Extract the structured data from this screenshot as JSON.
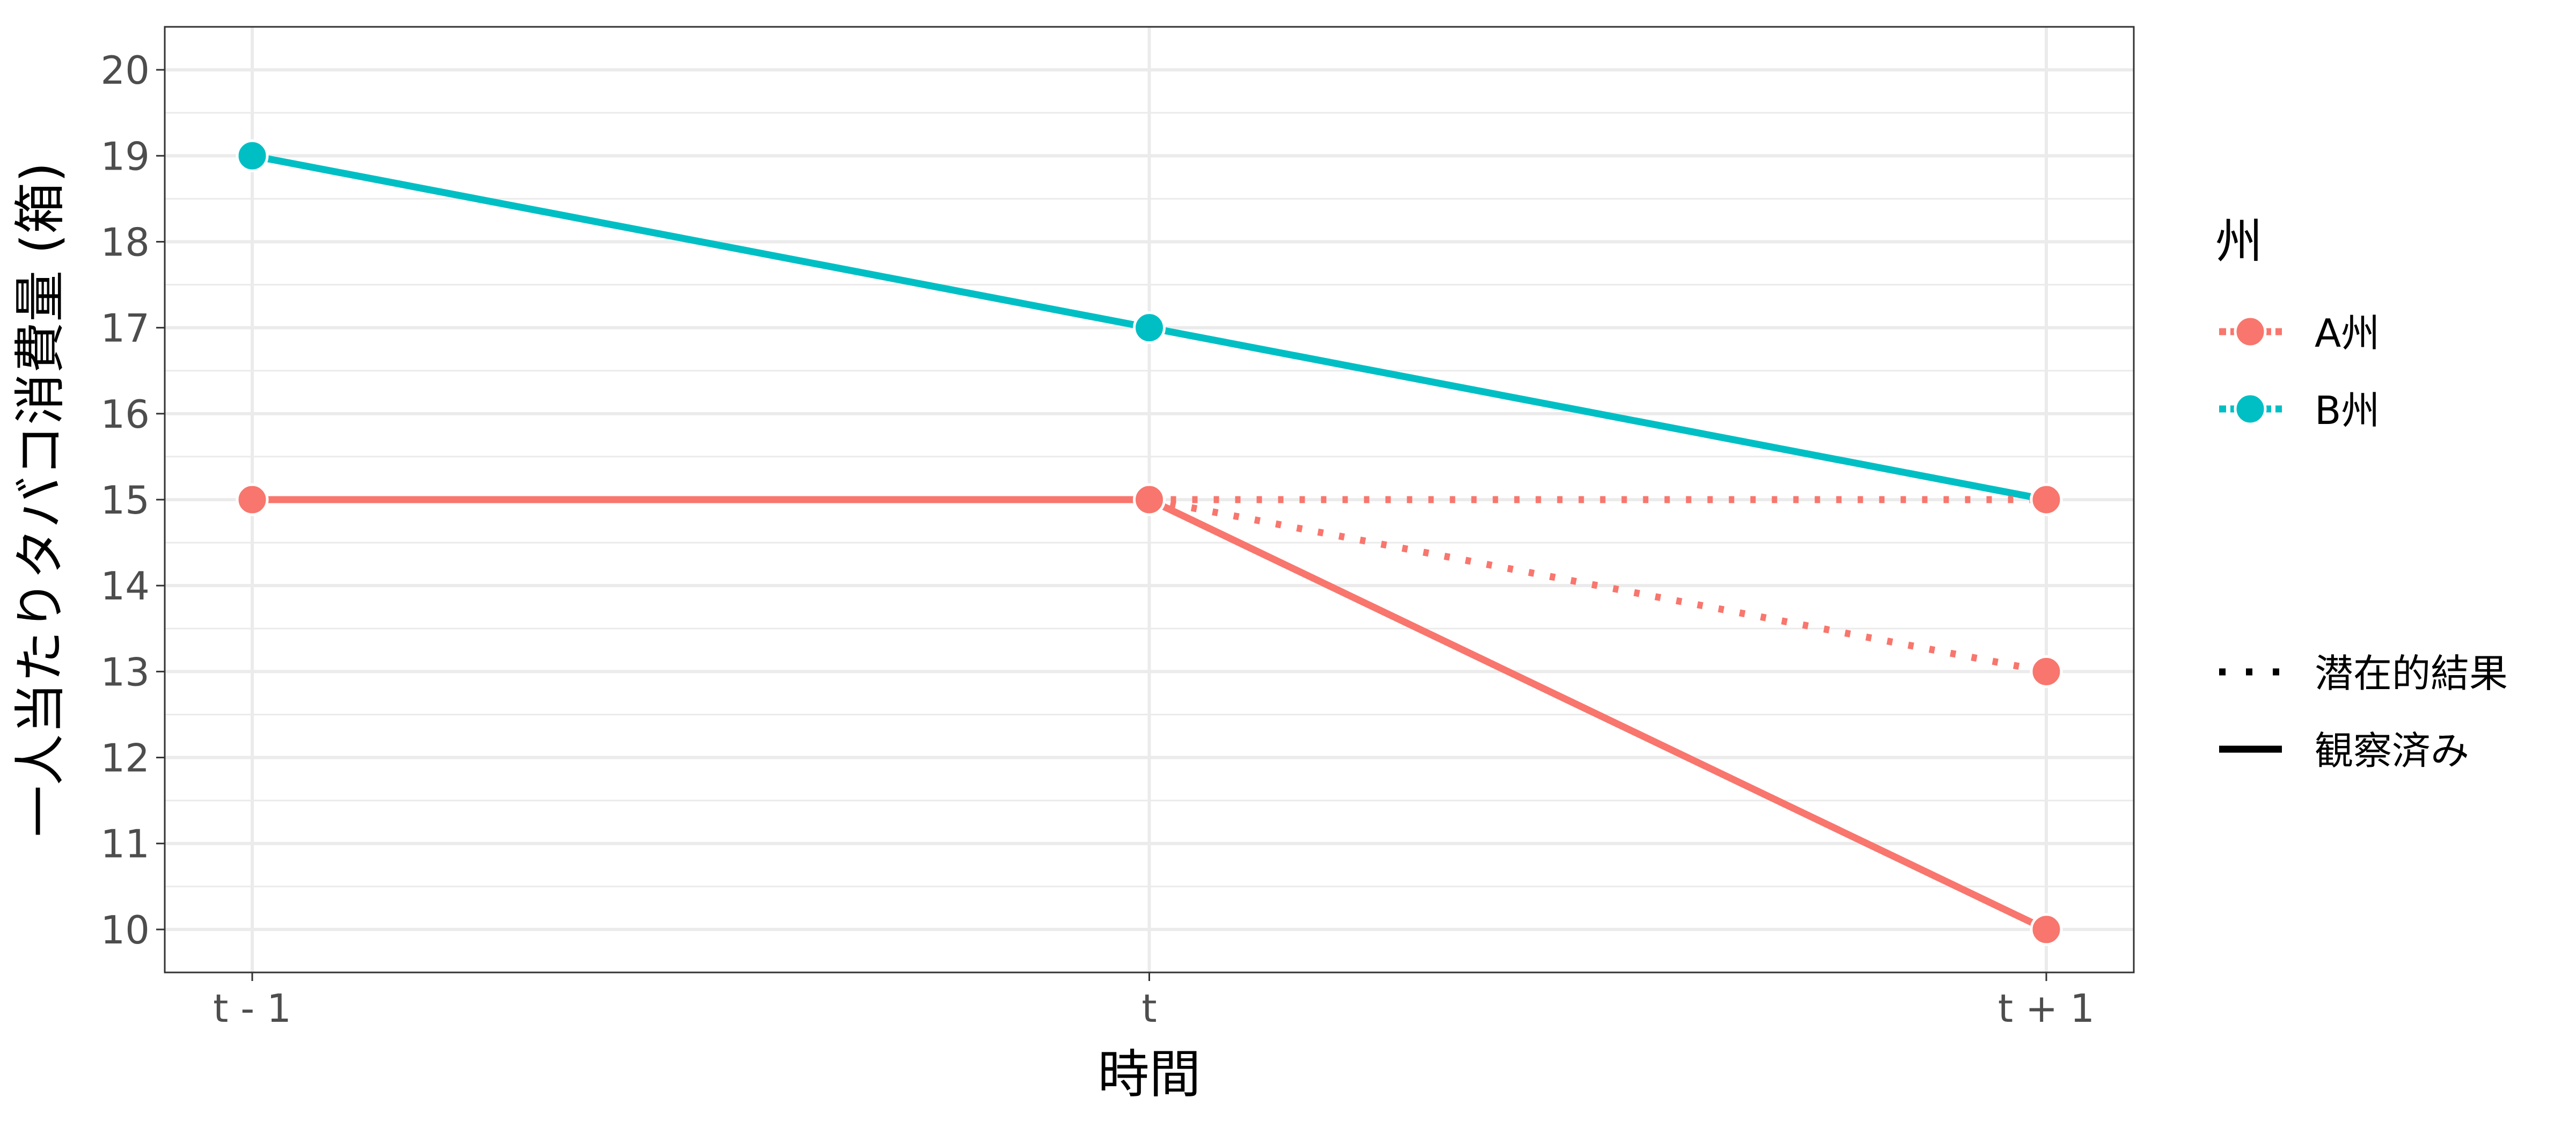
{
  "chart_data": {
    "type": "line",
    "title": "",
    "xlabel": "時間",
    "ylabel": "一人当たりタバコ消費量 (箱)",
    "categories": [
      "t - 1",
      "t",
      "t + 1"
    ],
    "ylim": [
      9.5,
      20.5
    ],
    "yticks": [
      10,
      11,
      12,
      13,
      14,
      15,
      16,
      17,
      18,
      19,
      20
    ],
    "grid": true,
    "legend_position": "right",
    "colors": {
      "a": "#F8766D",
      "b": "#00BFC4"
    },
    "legend": {
      "color_title": "州",
      "color_entries": [
        {
          "name": "A州",
          "color": "#F8766D"
        },
        {
          "name": "B州",
          "color": "#00BFC4"
        }
      ],
      "linetype_entries": [
        {
          "name": "潜在的結果",
          "style": "dotted"
        },
        {
          "name": "観察済み",
          "style": "solid"
        }
      ]
    },
    "series": [
      {
        "state": "B州",
        "linetype": "観察済み",
        "color": "#00BFC4",
        "points": [
          {
            "x": "t - 1",
            "y": 19
          },
          {
            "x": "t",
            "y": 17
          },
          {
            "x": "t + 1",
            "y": 15
          }
        ]
      },
      {
        "state": "A州",
        "linetype": "観察済み",
        "color": "#F8766D",
        "points": [
          {
            "x": "t - 1",
            "y": 15
          },
          {
            "x": "t",
            "y": 15
          }
        ]
      },
      {
        "state": "A州",
        "linetype": "観察済み",
        "color": "#F8766D",
        "points": [
          {
            "x": "t",
            "y": 15
          },
          {
            "x": "t + 1",
            "y": 10
          }
        ]
      },
      {
        "state": "A州",
        "linetype": "潜在的結果",
        "color": "#F8766D",
        "points": [
          {
            "x": "t",
            "y": 15
          },
          {
            "x": "t + 1",
            "y": 15
          }
        ]
      },
      {
        "state": "A州",
        "linetype": "潜在的結果",
        "color": "#F8766D",
        "points": [
          {
            "x": "t",
            "y": 15
          },
          {
            "x": "t + 1",
            "y": 13
          }
        ]
      }
    ]
  }
}
